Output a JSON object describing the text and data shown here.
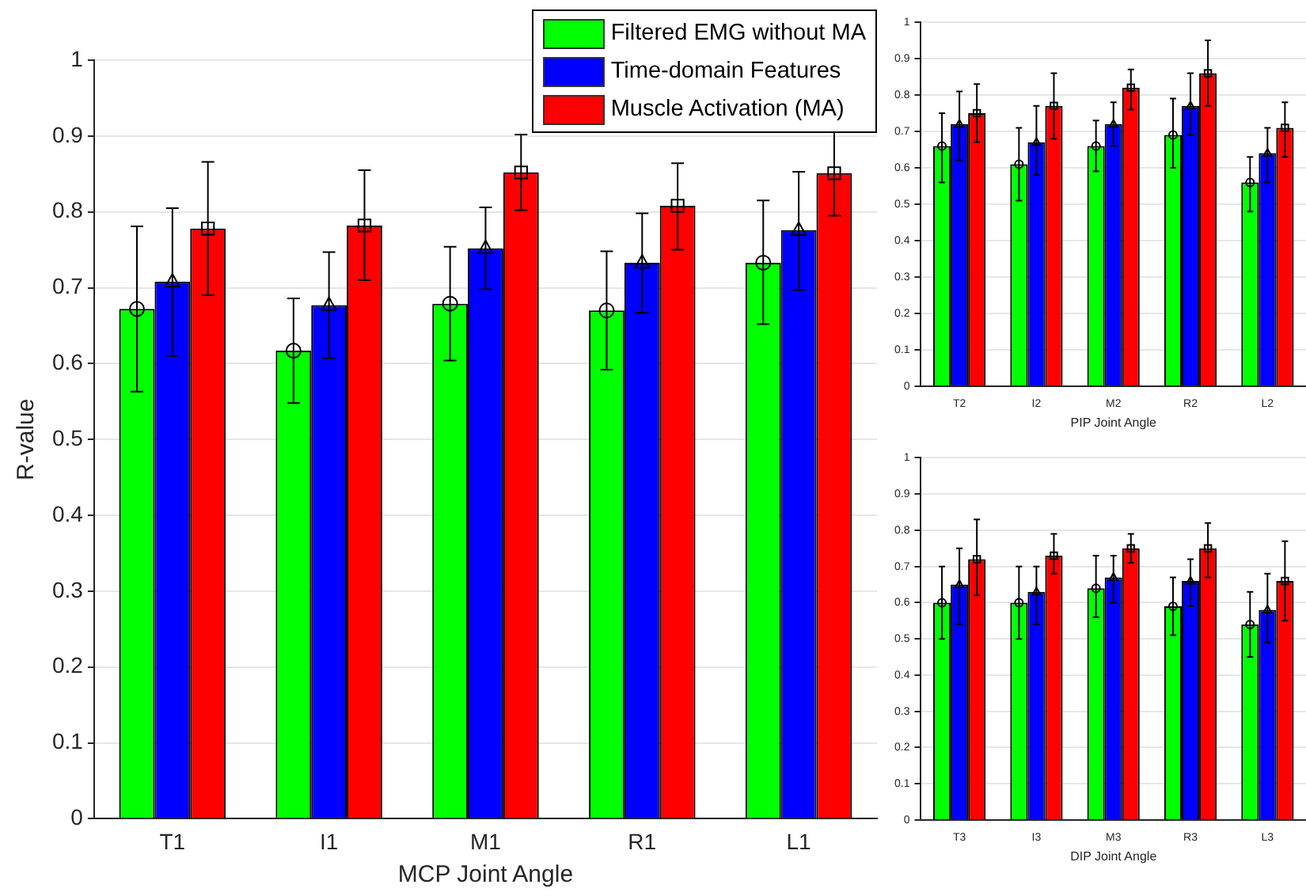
{
  "chart_data": [
    {
      "type": "bar",
      "xlabel": "MCP Joint Angle",
      "ylabel": "R-value",
      "categories": [
        "T1",
        "I1",
        "M1",
        "R1",
        "L1"
      ],
      "series": [
        {
          "name": "Filtered EMG without MA",
          "color": "#00ff00",
          "values": [
            0.672,
            0.617,
            0.679,
            0.67,
            0.733
          ]
        },
        {
          "name": "Time-domain Features",
          "color": "#0000ff",
          "values": [
            0.708,
            0.677,
            0.752,
            0.733,
            0.776
          ]
        },
        {
          "name": "Muscle Activation (MA)",
          "color": "#ff0000",
          "values": [
            0.778,
            0.782,
            0.852,
            0.808,
            0.851
          ]
        },
        {
          "type": "scatter",
          "color": "#000000",
          "marker": "circle",
          "x": [
            "T1",
            "I1",
            "M1",
            "R1",
            "L1"
          ],
          "values": [
            0.672,
            0.617,
            0.679,
            0.67,
            0.733
          ],
          "errors": [
            [
              0.563,
              0.781
            ],
            [
              0.548,
              0.686
            ],
            [
              0.604,
              0.754
            ],
            [
              0.592,
              0.748
            ],
            [
              0.652,
              0.815
            ]
          ]
        },
        {
          "type": "scatter",
          "color": "#000000",
          "marker": "triangle",
          "x": [
            "T1",
            "I1",
            "M1",
            "R1",
            "L1"
          ],
          "values": [
            0.708,
            0.677,
            0.752,
            0.733,
            0.776
          ],
          "errors": [
            [
              0.61,
              0.805
            ],
            [
              0.607,
              0.747
            ],
            [
              0.698,
              0.806
            ],
            [
              0.667,
              0.798
            ],
            [
              0.697,
              0.853
            ]
          ]
        },
        {
          "type": "scatter",
          "color": "#000000",
          "marker": "square",
          "x": [
            "T1",
            "I1",
            "M1",
            "R1",
            "L1"
          ],
          "values": [
            0.778,
            0.782,
            0.852,
            0.808,
            0.851
          ],
          "errors": [
            [
              0.69,
              0.866
            ],
            [
              0.71,
              0.855
            ],
            [
              0.802,
              0.902
            ],
            [
              0.75,
              0.864
            ],
            [
              0.795,
              0.908
            ]
          ]
        }
      ],
      "ylim": [
        0,
        1
      ],
      "yticks": [
        0,
        0.1,
        0.2,
        0.3,
        0.4,
        0.5,
        0.6,
        0.7,
        0.8,
        0.9,
        1
      ],
      "grid": "y",
      "legend": "top right"
    },
    {
      "type": "bar",
      "xlabel": "PIP Joint Angle",
      "categories": [
        "T2",
        "I2",
        "M2",
        "R2",
        "L2"
      ],
      "series": [
        {
          "color": "#00ff00",
          "values": [
            0.66,
            0.61,
            0.66,
            0.69,
            0.56
          ]
        },
        {
          "color": "#0000ff",
          "values": [
            0.72,
            0.67,
            0.72,
            0.77,
            0.64
          ]
        },
        {
          "color": "#ff0000",
          "values": [
            0.75,
            0.77,
            0.82,
            0.86,
            0.71
          ]
        },
        {
          "type": "scatter",
          "color": "#000000",
          "marker": "circle",
          "x": [
            "T2",
            "I2",
            "M2",
            "R2",
            "L2"
          ],
          "values": [
            0.66,
            0.61,
            0.66,
            0.69,
            0.56
          ],
          "errors": [
            [
              0.56,
              0.75
            ],
            [
              0.51,
              0.71
            ],
            [
              0.59,
              0.73
            ],
            [
              0.6,
              0.79
            ],
            [
              0.48,
              0.63
            ]
          ]
        },
        {
          "type": "scatter",
          "color": "#000000",
          "marker": "triangle",
          "x": [
            "T2",
            "I2",
            "M2",
            "R2",
            "L2"
          ],
          "values": [
            0.72,
            0.67,
            0.72,
            0.77,
            0.64
          ],
          "errors": [
            [
              0.62,
              0.81
            ],
            [
              0.58,
              0.77
            ],
            [
              0.66,
              0.78
            ],
            [
              0.69,
              0.86
            ],
            [
              0.56,
              0.71
            ]
          ]
        },
        {
          "type": "scatter",
          "color": "#000000",
          "marker": "square",
          "x": [
            "T2",
            "I2",
            "M2",
            "R2",
            "L2"
          ],
          "values": [
            0.75,
            0.77,
            0.82,
            0.86,
            0.71
          ],
          "errors": [
            [
              0.67,
              0.83
            ],
            [
              0.68,
              0.86
            ],
            [
              0.76,
              0.87
            ],
            [
              0.77,
              0.95
            ],
            [
              0.63,
              0.78
            ]
          ]
        }
      ],
      "ylim": [
        0,
        1
      ],
      "yticks": [
        0,
        0.1,
        0.2,
        0.3,
        0.4,
        0.5,
        0.6,
        0.7,
        0.8,
        0.9,
        1
      ],
      "grid": "y"
    },
    {
      "type": "bar",
      "xlabel": "DIP Joint Angle",
      "categories": [
        "T3",
        "I3",
        "M3",
        "R3",
        "L3"
      ],
      "series": [
        {
          "color": "#00ff00",
          "values": [
            0.6,
            0.6,
            0.64,
            0.59,
            0.54
          ]
        },
        {
          "color": "#0000ff",
          "values": [
            0.65,
            0.63,
            0.67,
            0.66,
            0.58
          ]
        },
        {
          "color": "#ff0000",
          "values": [
            0.72,
            0.73,
            0.75,
            0.75,
            0.66
          ]
        },
        {
          "type": "scatter",
          "color": "#000000",
          "marker": "circle",
          "x": [
            "T3",
            "I3",
            "M3",
            "R3",
            "L3"
          ],
          "values": [
            0.6,
            0.6,
            0.64,
            0.59,
            0.54
          ],
          "errors": [
            [
              0.5,
              0.7
            ],
            [
              0.5,
              0.7
            ],
            [
              0.56,
              0.73
            ],
            [
              0.51,
              0.67
            ],
            [
              0.45,
              0.63
            ]
          ]
        },
        {
          "type": "scatter",
          "color": "#000000",
          "marker": "triangle",
          "x": [
            "T3",
            "I3",
            "M3",
            "R3",
            "L3"
          ],
          "values": [
            0.65,
            0.63,
            0.67,
            0.66,
            0.58
          ],
          "errors": [
            [
              0.54,
              0.75
            ],
            [
              0.54,
              0.7
            ],
            [
              0.6,
              0.73
            ],
            [
              0.59,
              0.72
            ],
            [
              0.49,
              0.68
            ]
          ]
        },
        {
          "type": "scatter",
          "color": "#000000",
          "marker": "square",
          "x": [
            "T3",
            "I3",
            "M3",
            "R3",
            "L3"
          ],
          "values": [
            0.72,
            0.73,
            0.75,
            0.75,
            0.66
          ],
          "errors": [
            [
              0.62,
              0.83
            ],
            [
              0.68,
              0.79
            ],
            [
              0.71,
              0.79
            ],
            [
              0.67,
              0.82
            ],
            [
              0.55,
              0.77
            ]
          ]
        }
      ],
      "ylim": [
        0,
        1
      ],
      "yticks": [
        0,
        0.1,
        0.2,
        0.3,
        0.4,
        0.5,
        0.6,
        0.7,
        0.8,
        0.9,
        1
      ],
      "grid": "y"
    }
  ]
}
